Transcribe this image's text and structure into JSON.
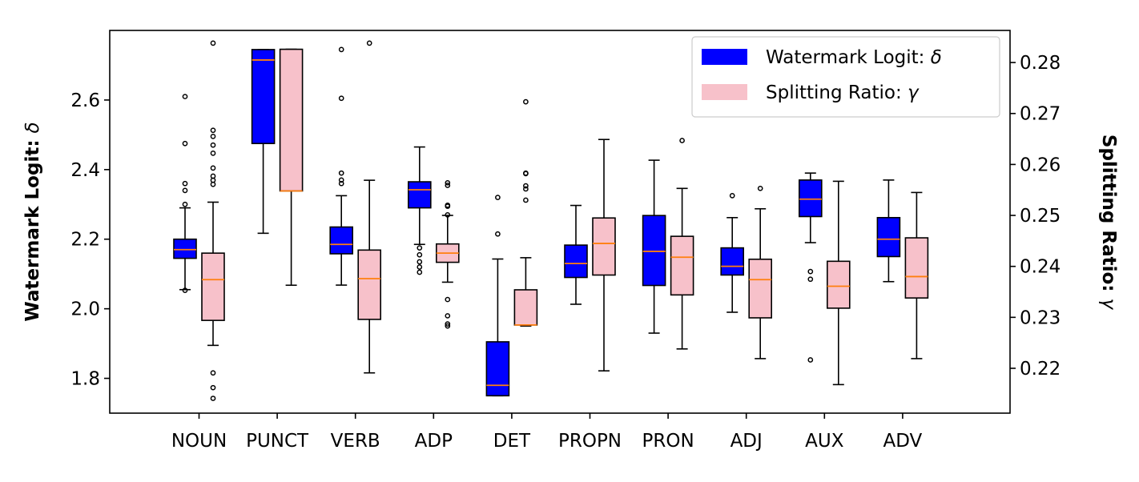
{
  "chart_data": {
    "type": "box",
    "categories": [
      "NOUN",
      "PUNCT",
      "VERB",
      "ADP",
      "DET",
      "PROPN",
      "PRON",
      "ADJ",
      "AUX",
      "ADV"
    ],
    "left_axis": {
      "label_prefix": "Watermark Logit: ",
      "label_symbol": "δ",
      "ylim": [
        1.7,
        2.8
      ],
      "ticks": [
        1.8,
        2.0,
        2.2,
        2.4,
        2.6
      ],
      "tick_labels": [
        "1.8",
        "2.0",
        "2.2",
        "2.4",
        "2.6"
      ]
    },
    "right_axis": {
      "label_prefix": "Splitting Ratio: ",
      "label_symbol": "γ",
      "ylim": [
        0.2112,
        0.2863
      ],
      "ticks": [
        0.22,
        0.23,
        0.24,
        0.25,
        0.26,
        0.27,
        0.28
      ],
      "tick_labels": [
        "0.22",
        "0.23",
        "0.24",
        "0.25",
        "0.26",
        "0.27",
        "0.28"
      ]
    },
    "series": [
      {
        "name": "Watermark Logit: δ",
        "axis": "left",
        "color": "#0000ff",
        "median_color": "#ff7f0e",
        "boxes": [
          {
            "whislo": 2.055,
            "q1": 2.145,
            "med": 2.17,
            "q3": 2.2,
            "whishi": 2.29,
            "fliers": [
              2.053,
              2.3,
              2.34,
              2.36,
              2.475,
              2.61
            ]
          },
          {
            "whislo": 2.217,
            "q1": 2.475,
            "med": 2.715,
            "q3": 2.745,
            "whishi": 2.745,
            "fliers": []
          },
          {
            "whislo": 2.068,
            "q1": 2.158,
            "med": 2.185,
            "q3": 2.235,
            "whishi": 2.325,
            "fliers": [
              2.36,
              2.37,
              2.39,
              2.605,
              2.745
            ]
          },
          {
            "whislo": 2.185,
            "q1": 2.29,
            "med": 2.342,
            "q3": 2.365,
            "whishi": 2.465,
            "fliers": [
              2.105,
              2.12,
              2.135,
              2.155,
              2.175
            ]
          },
          {
            "whislo": 1.75,
            "q1": 1.75,
            "med": 1.78,
            "q3": 1.905,
            "whishi": 2.143,
            "fliers": [
              2.215,
              2.32
            ]
          },
          {
            "whislo": 2.013,
            "q1": 2.09,
            "med": 2.13,
            "q3": 2.183,
            "whishi": 2.297,
            "fliers": []
          },
          {
            "whislo": 1.93,
            "q1": 2.067,
            "med": 2.165,
            "q3": 2.268,
            "whishi": 2.427,
            "fliers": []
          },
          {
            "whislo": 1.99,
            "q1": 2.097,
            "med": 2.122,
            "q3": 2.175,
            "whishi": 2.262,
            "fliers": [
              2.325
            ]
          },
          {
            "whislo": 2.19,
            "q1": 2.265,
            "med": 2.315,
            "q3": 2.37,
            "whishi": 2.39,
            "fliers": [
              1.853,
              2.085,
              2.107
            ]
          },
          {
            "whislo": 2.078,
            "q1": 2.15,
            "med": 2.2,
            "q3": 2.262,
            "whishi": 2.37,
            "fliers": []
          }
        ]
      },
      {
        "name": "Splitting Ratio: γ",
        "axis": "right",
        "color": "#f7c1ca",
        "median_color": "#ff7f0e",
        "boxes": [
          {
            "whislo": 0.2245,
            "q1": 0.2294,
            "med": 0.2374,
            "q3": 0.2426,
            "whishi": 0.2526,
            "fliers": [
              0.2141,
              0.2162,
              0.2191,
              0.2561,
              0.2569,
              0.2577,
              0.2593,
              0.2622,
              0.2638,
              0.2655,
              0.2667,
              0.2838
            ]
          },
          {
            "whislo": 0.2363,
            "q1": 0.2548,
            "med": 0.2548,
            "q3": 0.2826,
            "whishi": 0.2826,
            "fliers": []
          },
          {
            "whislo": 0.2191,
            "q1": 0.2296,
            "med": 0.2376,
            "q3": 0.2432,
            "whishi": 0.2569,
            "fliers": [
              0.2838
            ]
          },
          {
            "whislo": 0.2369,
            "q1": 0.2408,
            "med": 0.2426,
            "q3": 0.2444,
            "whishi": 0.25,
            "fliers": [
              0.2283,
              0.2287,
              0.2303,
              0.2335,
              0.2501,
              0.2518,
              0.252,
              0.2559,
              0.2564
            ]
          },
          {
            "whislo": 0.2283,
            "q1": 0.2285,
            "med": 0.2285,
            "q3": 0.2354,
            "whishi": 0.2417,
            "fliers": [
              0.253,
              0.2552,
              0.2558,
              0.2582,
              0.2583,
              0.2723
            ]
          },
          {
            "whislo": 0.2195,
            "q1": 0.2383,
            "med": 0.2445,
            "q3": 0.2495,
            "whishi": 0.2649,
            "fliers": []
          },
          {
            "whislo": 0.2238,
            "q1": 0.2344,
            "med": 0.2418,
            "q3": 0.2459,
            "whishi": 0.2553,
            "fliers": [
              0.2647
            ]
          },
          {
            "whislo": 0.2219,
            "q1": 0.2299,
            "med": 0.2374,
            "q3": 0.2414,
            "whishi": 0.2513,
            "fliers": [
              0.2553
            ]
          },
          {
            "whislo": 0.2168,
            "q1": 0.2318,
            "med": 0.2361,
            "q3": 0.241,
            "whishi": 0.2567,
            "fliers": []
          },
          {
            "whislo": 0.2219,
            "q1": 0.2338,
            "med": 0.238,
            "q3": 0.2456,
            "whishi": 0.2545,
            "fliers": []
          }
        ]
      }
    ],
    "legend": {
      "placement": "top-right",
      "entries": [
        {
          "prefix": "Watermark Logit: ",
          "symbol": "δ",
          "color": "#0000ff"
        },
        {
          "prefix": "Splitting Ratio: ",
          "symbol": "γ",
          "color": "#f7c1ca"
        }
      ]
    },
    "grid": false
  }
}
